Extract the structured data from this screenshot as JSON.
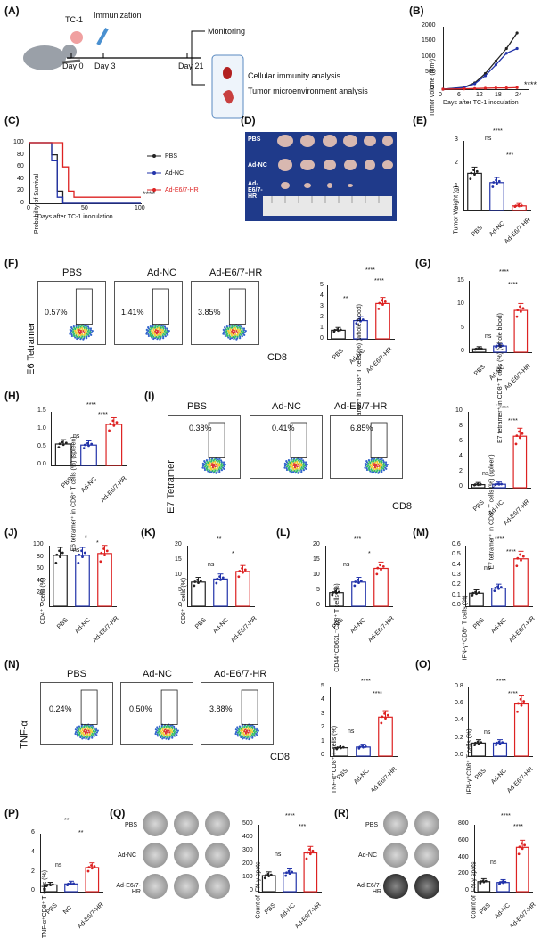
{
  "panels": {
    "A": {
      "label": "(A)",
      "steps": [
        "TC-1",
        "Immunization",
        "Day 0",
        "Day 3",
        "Day 21",
        "Monitoring",
        "Cellular immunity analysis",
        "Tumor microenvironment analysis"
      ]
    },
    "B": {
      "label": "(B)",
      "ylabel": "Tumor volume (mm³)",
      "xlabel": "Days after TC-1 inoculation",
      "xticks": [
        "0",
        "6",
        "12",
        "18",
        "24"
      ],
      "yticks": [
        "0",
        "500",
        "1000",
        "1500",
        "2000"
      ],
      "sig": "****"
    },
    "C": {
      "label": "(C)",
      "ylabel": "Probability of Survival",
      "xlabel": "Days after TC-1 inoculation",
      "xticks": [
        "0",
        "50",
        "100"
      ],
      "yticks": [
        "0",
        "20",
        "40",
        "60",
        "80",
        "100"
      ],
      "legend": [
        "PBS",
        "Ad-NC",
        "Ad-E6/7-HR"
      ],
      "sig": "****"
    },
    "D": {
      "label": "(D)",
      "rows": [
        "PBS",
        "Ad-NC",
        "Ad-E6/7-HR"
      ]
    },
    "E": {
      "label": "(E)",
      "ylabel": "Tumor Weight (g)",
      "yticks": [
        "0",
        "1",
        "2",
        "3"
      ],
      "sigs": [
        "ns",
        "****",
        "***"
      ]
    },
    "F": {
      "label": "(F)",
      "flow_titles": [
        "PBS",
        "Ad-NC",
        "Ad-E6/7-HR"
      ],
      "percents": [
        "0.57%",
        "1.41%",
        "3.85%"
      ],
      "yaxis": "E6 Tetramer",
      "xaxis": "CD8",
      "bar_ylabel": "E6 tetramer⁺ in CD8⁺ T cells (%) (whole blood)",
      "yticks": [
        "0",
        "1",
        "2",
        "3",
        "4",
        "5"
      ],
      "sigs": [
        "****",
        "****",
        "**"
      ]
    },
    "G": {
      "label": "(G)",
      "ylabel": "E7 tetramer⁺ in CD8⁺ T cells (%) (whole blood)",
      "yticks": [
        "0",
        "5",
        "10",
        "15"
      ],
      "sigs": [
        "****",
        "****",
        "ns"
      ]
    },
    "H": {
      "label": "(H)",
      "ylabel": "E6 tetramer⁺ in CD8⁺ T cells (%) (spleen)",
      "yticks": [
        "0.0",
        "0.5",
        "1.0",
        "1.5"
      ],
      "sigs": [
        "****",
        "****",
        "ns"
      ]
    },
    "I": {
      "label": "(I)",
      "flow_titles": [
        "PBS",
        "Ad-NC",
        "Ad-E6/7-HR"
      ],
      "percents": [
        "0.38%",
        "0.41%",
        "6.85%"
      ],
      "yaxis": "E7 Tetramer",
      "xaxis": "CD8",
      "bar_ylabel": "E7 tetramer⁺ in CD8⁺ T cells (%) (spleen)",
      "yticks": [
        "0",
        "2",
        "4",
        "6",
        "8",
        "10"
      ],
      "sigs": [
        "****",
        "****",
        "ns"
      ]
    },
    "J": {
      "label": "(J)",
      "ylabel": "CD4⁺ T cells (%)",
      "yticks": [
        "0",
        "10",
        "20",
        "30",
        "40",
        "50",
        "60",
        "70",
        "80",
        "90",
        "100"
      ],
      "sigs": [
        "*",
        "ns",
        "*"
      ]
    },
    "K": {
      "label": "(K)",
      "ylabel": "CD8⁺ T cells (%)",
      "yticks": [
        "0",
        "5",
        "10",
        "15",
        "20"
      ],
      "sigs": [
        "**",
        "*",
        "ns"
      ]
    },
    "L": {
      "label": "(L)",
      "ylabel": "CD44⁺CD62L⁻CD8⁺ T cells (%)",
      "yticks": [
        "0",
        "5",
        "10",
        "15",
        "20"
      ],
      "sigs": [
        "***",
        "*",
        "ns"
      ]
    },
    "M": {
      "label": "(M)",
      "ylabel": "IFN-γ⁺CD8⁺ T cells (%)",
      "yticks": [
        "0.0",
        "0.1",
        "0.2",
        "0.3",
        "0.4",
        "0.5",
        "0.6"
      ],
      "sigs": [
        "****",
        "****",
        "ns"
      ]
    },
    "N": {
      "label": "(N)",
      "flow_titles": [
        "PBS",
        "Ad-NC",
        "Ad-E6/7-HR"
      ],
      "percents": [
        "0.24%",
        "0.50%",
        "3.88%"
      ],
      "yaxis": "TNF-α",
      "xaxis": "CD8",
      "bar_ylabel": "TNF-α⁺CD8⁺ T cells (%)",
      "yticks": [
        "0",
        "1",
        "2",
        "3",
        "4",
        "5"
      ],
      "sigs": [
        "****",
        "****",
        "ns"
      ]
    },
    "O": {
      "label": "(O)",
      "ylabel": "IFN-γ⁺CD8⁺ T cells (%)",
      "yticks": [
        "0.0",
        "0.2",
        "0.4",
        "0.6",
        "0.8"
      ],
      "sigs": [
        "****",
        "****",
        "ns"
      ]
    },
    "P": {
      "label": "(P)",
      "ylabel": "TNF-α⁺CD8⁺ T cells (%)",
      "yticks": [
        "0",
        "2",
        "4",
        "6"
      ],
      "sigs": [
        "**",
        "**",
        "ns"
      ],
      "groups": [
        "PBS",
        "NC",
        "Ad-E6/7-HR"
      ]
    },
    "Q": {
      "label": "(Q)",
      "rows": [
        "PBS",
        "Ad-NC",
        "Ad-E6/7-HR"
      ],
      "ylabel": "Count of IFN-γ spots",
      "yticks": [
        "0",
        "100",
        "200",
        "300",
        "400",
        "500"
      ],
      "sigs": [
        "****",
        "***",
        "ns"
      ]
    },
    "R": {
      "label": "(R)",
      "rows": [
        "PBS",
        "Ad-NC",
        "Ad-E6/7-HR"
      ],
      "ylabel": "Count of IFN-γ spots",
      "yticks": [
        "0",
        "200",
        "400",
        "600",
        "800"
      ],
      "sigs": [
        "****",
        "****",
        "ns"
      ]
    }
  },
  "groups": [
    "PBS",
    "Ad-NC",
    "Ad-E6/7-HR"
  ],
  "colors": {
    "PBS": "#222222",
    "Ad-NC": "#2233aa",
    "Ad-E6/7-HR": "#dd2222"
  },
  "chart_data": [
    {
      "type": "line",
      "title": "(B)",
      "xlabel": "Days after TC-1 inoculation",
      "ylabel": "Tumor volume (mm³)",
      "x": [
        0,
        6,
        9,
        12,
        15,
        18,
        21
      ],
      "series": [
        {
          "name": "PBS",
          "values": [
            0,
            60,
            200,
            500,
            900,
            1300,
            1800
          ]
        },
        {
          "name": "Ad-NC",
          "values": [
            0,
            50,
            170,
            430,
            780,
            1150,
            1300
          ]
        },
        {
          "name": "Ad-E6/7-HR",
          "values": [
            0,
            10,
            20,
            30,
            40,
            40,
            50
          ]
        }
      ],
      "ylim": [
        0,
        2000
      ],
      "xlim": [
        0,
        24
      ]
    },
    {
      "type": "line",
      "title": "(C)",
      "xlabel": "Days after TC-1 inoculation",
      "ylabel": "Probability of Survival",
      "x": [
        0,
        20,
        25,
        30,
        35,
        40,
        100
      ],
      "series": [
        {
          "name": "PBS",
          "values": [
            100,
            80,
            20,
            0,
            0,
            0,
            0
          ]
        },
        {
          "name": "Ad-NC",
          "values": [
            100,
            70,
            10,
            0,
            0,
            0,
            0
          ]
        },
        {
          "name": "Ad-E6/7-HR",
          "values": [
            100,
            100,
            100,
            60,
            20,
            10,
            10
          ]
        }
      ],
      "ylim": [
        0,
        100
      ],
      "xlim": [
        0,
        100
      ]
    },
    {
      "type": "bar",
      "title": "(E)",
      "categories": [
        "PBS",
        "Ad-NC",
        "Ad-E6/7-HR"
      ],
      "values": [
        1.6,
        1.2,
        0.2
      ],
      "ylabel": "Tumor Weight (g)",
      "ylim": [
        0,
        3
      ]
    },
    {
      "type": "bar",
      "title": "(F)",
      "categories": [
        "PBS",
        "Ad-NC",
        "Ad-E6/7-HR"
      ],
      "values": [
        0.8,
        1.7,
        3.3
      ],
      "ylim": [
        0,
        5
      ]
    },
    {
      "type": "bar",
      "title": "(G)",
      "categories": [
        "PBS",
        "Ad-NC",
        "Ad-E6/7-HR"
      ],
      "values": [
        0.7,
        1.3,
        8.8
      ],
      "ylim": [
        0,
        15
      ]
    },
    {
      "type": "bar",
      "title": "(H)",
      "categories": [
        "PBS",
        "Ad-NC",
        "Ad-E6/7-HR"
      ],
      "values": [
        0.6,
        0.57,
        1.15
      ],
      "ylim": [
        0,
        1.5
      ]
    },
    {
      "type": "bar",
      "title": "(I)",
      "categories": [
        "PBS",
        "Ad-NC",
        "Ad-E6/7-HR"
      ],
      "values": [
        0.4,
        0.45,
        6.8
      ],
      "ylim": [
        0,
        10
      ]
    },
    {
      "type": "bar",
      "title": "(J)",
      "categories": [
        "PBS",
        "Ad-NC",
        "Ad-E6/7-HR"
      ],
      "values": [
        84,
        84,
        87
      ],
      "ylim": [
        0,
        100
      ]
    },
    {
      "type": "bar",
      "title": "(K)",
      "categories": [
        "PBS",
        "Ad-NC",
        "Ad-E6/7-HR"
      ],
      "values": [
        8,
        9,
        11.5
      ],
      "ylim": [
        0,
        20
      ]
    },
    {
      "type": "bar",
      "title": "(L)",
      "categories": [
        "PBS",
        "Ad-NC",
        "Ad-E6/7-HR"
      ],
      "values": [
        4.5,
        8,
        12.5
      ],
      "ylim": [
        0,
        20
      ]
    },
    {
      "type": "bar",
      "title": "(M)",
      "categories": [
        "PBS",
        "Ad-NC",
        "Ad-E6/7-HR"
      ],
      "values": [
        0.13,
        0.18,
        0.47
      ],
      "ylim": [
        0,
        0.6
      ]
    },
    {
      "type": "bar",
      "title": "(N)",
      "categories": [
        "PBS",
        "Ad-NC",
        "Ad-E6/7-HR"
      ],
      "values": [
        0.6,
        0.65,
        2.8
      ],
      "ylim": [
        0,
        5
      ]
    },
    {
      "type": "bar",
      "title": "(O)",
      "categories": [
        "PBS",
        "Ad-NC",
        "Ad-E6/7-HR"
      ],
      "values": [
        0.15,
        0.15,
        0.6
      ],
      "ylim": [
        0,
        0.8
      ]
    },
    {
      "type": "bar",
      "title": "(P)",
      "categories": [
        "PBS",
        "NC",
        "Ad-E6/7-HR"
      ],
      "values": [
        0.7,
        0.8,
        2.5
      ],
      "ylim": [
        0,
        6
      ]
    },
    {
      "type": "bar",
      "title": "(Q)",
      "categories": [
        "PBS",
        "Ad-NC",
        "Ad-E6/7-HR"
      ],
      "values": [
        120,
        140,
        290
      ],
      "ylim": [
        0,
        500
      ]
    },
    {
      "type": "bar",
      "title": "(R)",
      "categories": [
        "PBS",
        "Ad-NC",
        "Ad-E6/7-HR"
      ],
      "values": [
        120,
        110,
        530
      ],
      "ylim": [
        0,
        800
      ]
    }
  ]
}
